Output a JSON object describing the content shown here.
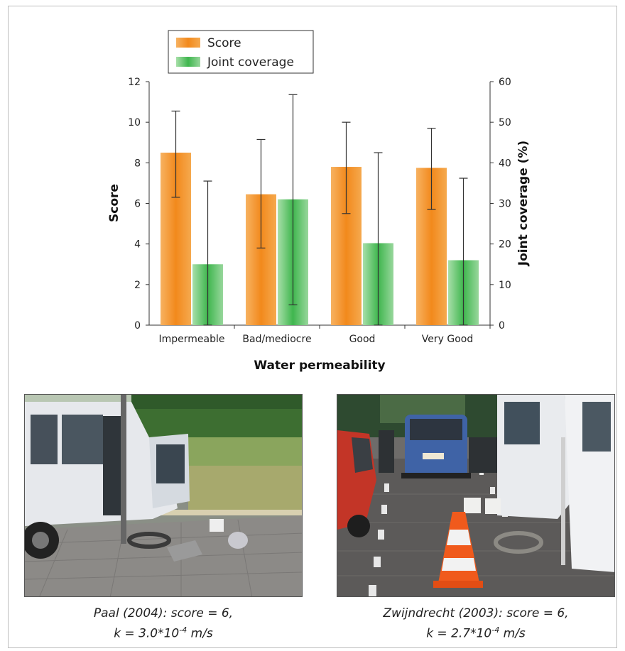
{
  "chart_data": {
    "type": "bar",
    "categories": [
      "Impermeable",
      "Bad/mediocre",
      "Good",
      "Very Good"
    ],
    "xlabel": "Water permeability",
    "ylabel": "Score",
    "y2label": "Joint coverage (%)",
    "ylim": [
      0,
      12
    ],
    "y2lim": [
      0,
      60
    ],
    "yticks": [
      0,
      2,
      4,
      6,
      8,
      10,
      12
    ],
    "y2ticks": [
      0,
      10,
      20,
      30,
      40,
      50,
      60
    ],
    "legend_position": "top-left",
    "series": [
      {
        "name": "Score",
        "axis": "left",
        "color": "#f28c1e",
        "values": [
          8.5,
          6.45,
          7.8,
          7.75
        ],
        "err_low": [
          6.3,
          3.8,
          5.5,
          5.7
        ],
        "err_high": [
          10.55,
          9.15,
          10.0,
          9.7
        ]
      },
      {
        "name": "Joint coverage",
        "axis": "right",
        "color": "#3eb54d",
        "values": [
          15.0,
          31.0,
          20.2,
          16.0
        ],
        "err_low": [
          0,
          5,
          0,
          0
        ],
        "err_high": [
          35.5,
          56.8,
          42.5,
          36.2
        ]
      }
    ]
  },
  "photos": [
    {
      "icon": "van-site-photo-icon",
      "caption_line1": "Paal (2004): score = 6,",
      "caption_line2_pre": "k = 3.0*10",
      "caption_line2_sup": "-4",
      "caption_line2_post": " m/s"
    },
    {
      "icon": "parking-site-photo-icon",
      "caption_line1": "Zwijndrecht (2003): score = 6,",
      "caption_line2_pre": "k = 2.7*10",
      "caption_line2_sup": "-4",
      "caption_line2_post": " m/s"
    }
  ]
}
